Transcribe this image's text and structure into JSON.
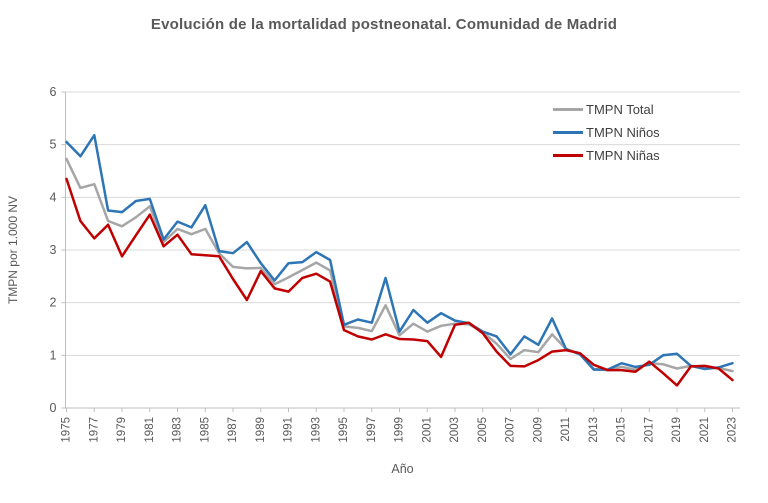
{
  "title": "Evolución de la mortalidad postneonatal. Comunidad de Madrid",
  "colors": {
    "total": "#A6A6A6",
    "ninos": "#2E75B6",
    "ninas": "#C00000",
    "grid": "#D9D9D9",
    "axis": "#BFBFBF",
    "tick_text": "#595959",
    "title_text": "#595959",
    "legend_text": "#404040"
  },
  "chart_data": {
    "type": "line",
    "title": "Evolución de la mortalidad postneonatal. Comunidad de Madrid",
    "xlabel": "Año",
    "ylabel": "TMPN por 1.000 NV",
    "ylim": [
      0,
      6
    ],
    "ytick_interval": 1,
    "ytick_labels": [
      "0",
      "1",
      "2",
      "3",
      "4",
      "5",
      "6"
    ],
    "xtick_labels": [
      "1975",
      "1977",
      "1979",
      "1981",
      "1983",
      "1985",
      "1987",
      "1989",
      "1991",
      "1993",
      "1995",
      "1997",
      "1999",
      "2001",
      "2003",
      "2005",
      "2007",
      "2009",
      "2011",
      "2013",
      "2015",
      "2017",
      "2019",
      "2021",
      "2023"
    ],
    "grid": "horizontal",
    "legend_position": "top-right-inside",
    "x": [
      1975,
      1976,
      1977,
      1978,
      1979,
      1980,
      1981,
      1982,
      1983,
      1984,
      1985,
      1986,
      1987,
      1988,
      1989,
      1990,
      1991,
      1992,
      1993,
      1994,
      1995,
      1996,
      1997,
      1998,
      1999,
      2000,
      2001,
      2002,
      2003,
      2004,
      2005,
      2006,
      2007,
      2008,
      2009,
      2010,
      2011,
      2012,
      2013,
      2014,
      2015,
      2016,
      2017,
      2018,
      2019,
      2020,
      2021,
      2022,
      2023
    ],
    "series": [
      {
        "name": "TMPN Total",
        "color": "#A6A6A6",
        "values": [
          4.73,
          4.18,
          4.25,
          3.55,
          3.45,
          3.62,
          3.83,
          3.15,
          3.4,
          3.3,
          3.4,
          2.94,
          2.68,
          2.65,
          2.66,
          2.35,
          2.48,
          2.62,
          2.76,
          2.61,
          1.55,
          1.52,
          1.46,
          1.95,
          1.38,
          1.6,
          1.45,
          1.56,
          1.6,
          1.59,
          1.44,
          1.22,
          0.93,
          1.1,
          1.06,
          1.4,
          1.12,
          1.03,
          0.74,
          0.72,
          0.78,
          0.73,
          0.85,
          0.83,
          0.75,
          0.8,
          0.76,
          0.76,
          0.7
        ]
      },
      {
        "name": "TMPN Niños",
        "color": "#2E75B6",
        "values": [
          5.05,
          4.78,
          5.18,
          3.75,
          3.72,
          3.93,
          3.97,
          3.2,
          3.54,
          3.43,
          3.85,
          2.98,
          2.94,
          3.15,
          2.75,
          2.42,
          2.75,
          2.77,
          2.96,
          2.81,
          1.58,
          1.68,
          1.62,
          2.47,
          1.45,
          1.86,
          1.62,
          1.8,
          1.66,
          1.61,
          1.45,
          1.36,
          1.02,
          1.36,
          1.2,
          1.7,
          1.12,
          1.02,
          0.73,
          0.73,
          0.85,
          0.78,
          0.82,
          1.0,
          1.03,
          0.8,
          0.74,
          0.77,
          0.85
        ]
      },
      {
        "name": "TMPN Niñas",
        "color": "#C00000",
        "values": [
          4.35,
          3.55,
          3.22,
          3.48,
          2.88,
          3.28,
          3.67,
          3.07,
          3.29,
          2.92,
          2.9,
          2.88,
          2.45,
          2.05,
          2.6,
          2.27,
          2.21,
          2.47,
          2.55,
          2.4,
          1.48,
          1.36,
          1.3,
          1.4,
          1.31,
          1.3,
          1.27,
          0.97,
          1.58,
          1.62,
          1.42,
          1.07,
          0.8,
          0.79,
          0.91,
          1.07,
          1.1,
          1.04,
          0.82,
          0.72,
          0.72,
          0.69,
          0.88,
          0.66,
          0.43,
          0.79,
          0.8,
          0.75,
          0.53
        ]
      }
    ]
  },
  "legend": {
    "items": [
      "TMPN Total",
      "TMPN Niños",
      "TMPN Niñas"
    ]
  }
}
